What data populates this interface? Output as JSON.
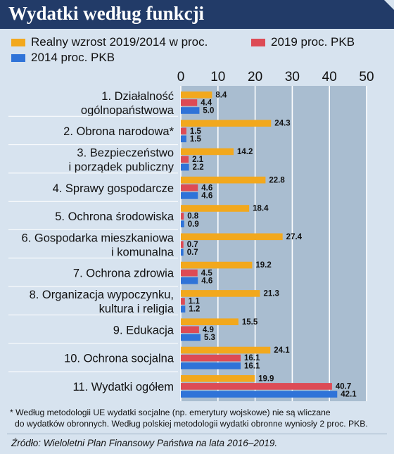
{
  "chart_data": {
    "type": "bar",
    "orientation": "horizontal",
    "title": "Wydatki według funkcji",
    "xlim": [
      0,
      50
    ],
    "xticks": [
      0,
      10,
      20,
      30,
      40,
      50
    ],
    "legend_position": "top",
    "categories": [
      [
        "1. Działalność",
        "ogólnopaństwowa"
      ],
      [
        "2. Obrona narodowa*"
      ],
      [
        "3. Bezpieczeństwo",
        "i porządek publiczny"
      ],
      [
        "4. Sprawy gospodarcze"
      ],
      [
        "5. Ochrona środowiska"
      ],
      [
        "6. Gospodarka mieszkaniowa",
        "i komunalna"
      ],
      [
        "7. Ochrona zdrowia"
      ],
      [
        "8. Organizacja wypoczynku,",
        "kultura i religia"
      ],
      [
        "9. Edukacja"
      ],
      [
        "10. Ochrona socjalna"
      ],
      [
        "11. Wydatki ogółem"
      ]
    ],
    "series": [
      {
        "name": "Realny wzrost 2019/2014 w proc.",
        "color": "#f2a81d",
        "values": [
          8.4,
          24.3,
          14.2,
          22.8,
          18.4,
          27.4,
          19.2,
          21.3,
          15.5,
          24.1,
          19.9
        ]
      },
      {
        "name": "2019 proc. PKB",
        "color": "#dd4b55",
        "values": [
          4.4,
          1.5,
          2.1,
          4.6,
          0.8,
          0.7,
          4.5,
          1.1,
          4.9,
          16.1,
          40.7
        ]
      },
      {
        "name": "2014 proc. PKB",
        "color": "#2f73d8",
        "values": [
          5.0,
          1.5,
          2.2,
          4.6,
          0.9,
          0.7,
          4.6,
          1.2,
          5.3,
          16.1,
          42.1
        ]
      }
    ]
  },
  "footnote": [
    "* Według metodologii UE wydatki socjalne (np. emerytury wojskowe) nie są wliczane",
    "do wydatków obronnych. Według polskiej metodologii wydatki obronne wyniosły 2 proc. PKB."
  ],
  "source": "Źródło: Wieloletni Plan Finansowy Państwa na lata 2016–2019.",
  "colors": {
    "header": "#223b68",
    "background": "#d7e3ef",
    "plot": "#a9bdd0"
  }
}
